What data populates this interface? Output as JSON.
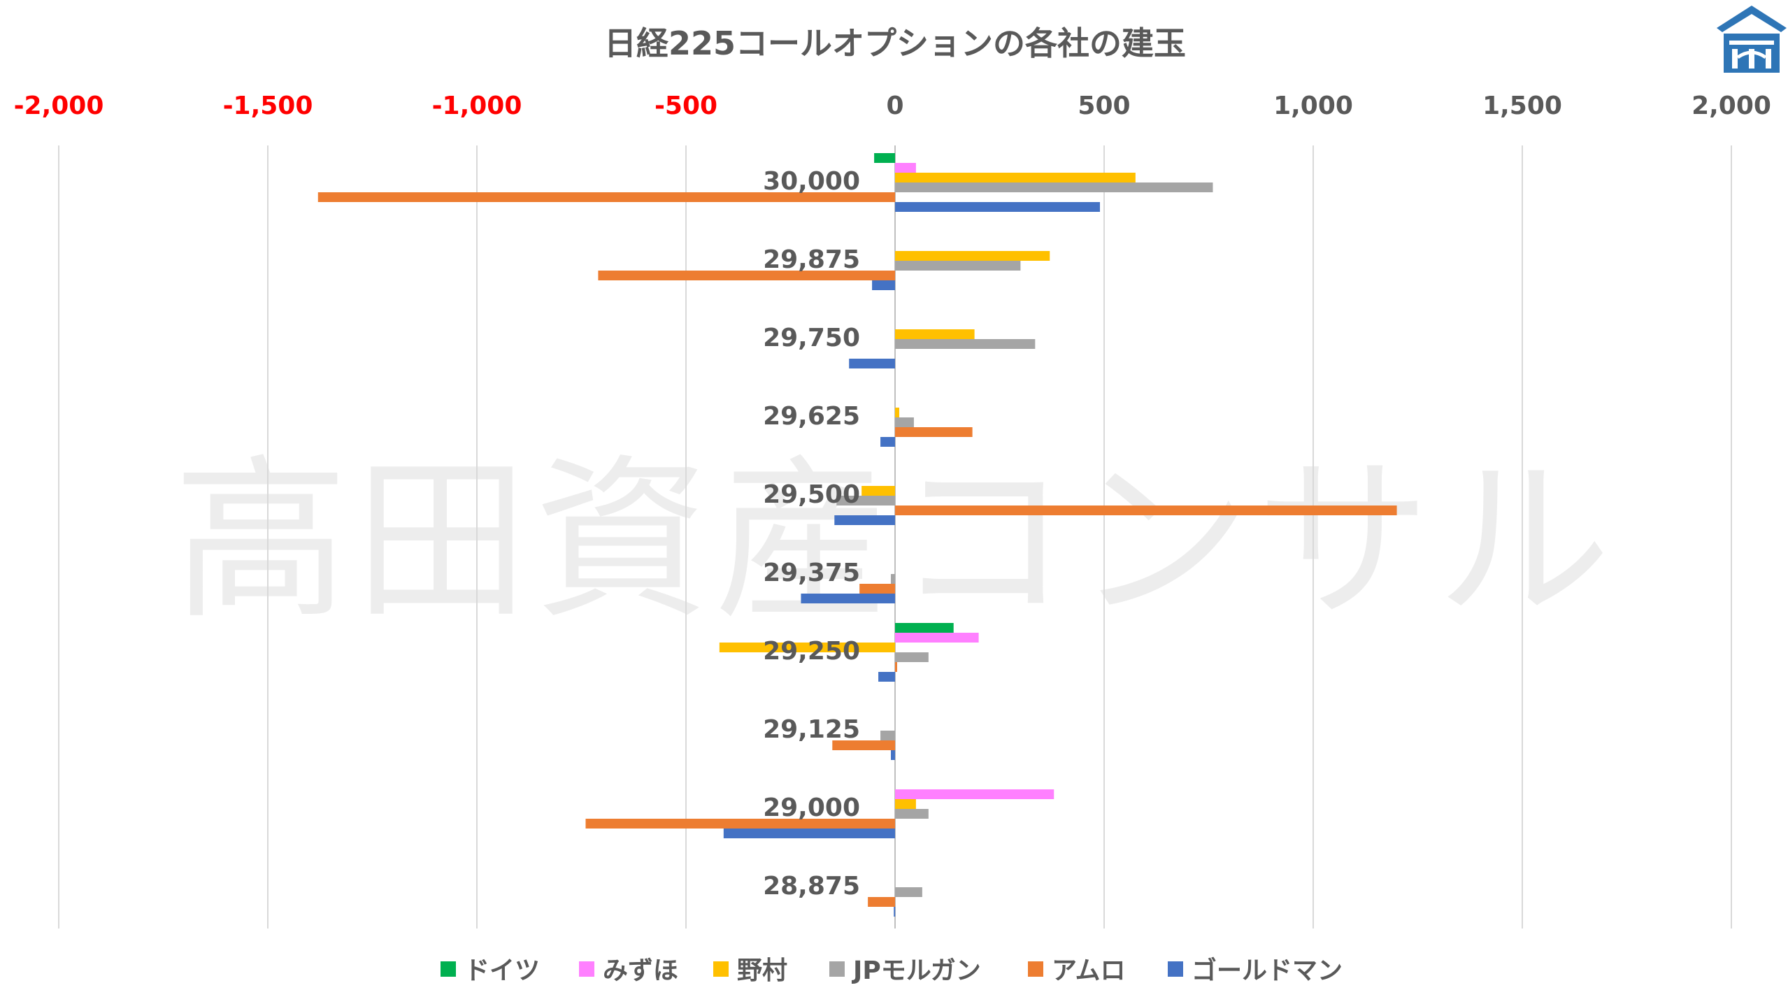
{
  "colors": {
    "negative_tick": "#ff0000",
    "positive_tick": "#595959",
    "grid": "#d9d9d9",
    "logo": "#2e75b6"
  },
  "watermark_text": "高田資産コンサル",
  "logo_icon": "house-logo-icon",
  "chart_data": {
    "type": "bar",
    "orientation": "horizontal",
    "title": "日経225コールオプションの各社の建玉",
    "xlabel": "",
    "ylabel": "",
    "xlim": [
      -2000,
      2000
    ],
    "x_ticks": [
      -2000,
      -1500,
      -1000,
      -500,
      0,
      500,
      1000,
      1500,
      2000
    ],
    "x_tick_labels": [
      "-2,000",
      "-1,500",
      "-1,000",
      "-500",
      "0",
      "500",
      "1,000",
      "1,500",
      "2,000"
    ],
    "grid": true,
    "legend_position": "bottom",
    "categories": [
      "30,000",
      "29,875",
      "29,750",
      "29,625",
      "29,500",
      "29,375",
      "29,250",
      "29,125",
      "29,000",
      "28,875"
    ],
    "series": [
      {
        "name": "ドイツ",
        "color": "#00b050",
        "values": [
          -50,
          0,
          0,
          0,
          0,
          0,
          140,
          0,
          0,
          0
        ]
      },
      {
        "name": "みずほ",
        "color": "#ff80ff",
        "values": [
          50,
          0,
          0,
          0,
          0,
          0,
          200,
          0,
          380,
          0
        ]
      },
      {
        "name": "野村",
        "color": "#ffc000",
        "values": [
          575,
          370,
          190,
          10,
          -80,
          0,
          -420,
          0,
          50,
          0
        ]
      },
      {
        "name": "JPモルガン",
        "color": "#a5a5a5",
        "values": [
          760,
          300,
          335,
          45,
          -140,
          -10,
          80,
          -35,
          80,
          65
        ]
      },
      {
        "name": "アムロ",
        "color": "#ed7d31",
        "values": [
          -1380,
          -710,
          0,
          185,
          1200,
          -85,
          5,
          -150,
          -740,
          -65
        ]
      },
      {
        "name": "ゴールドマン",
        "color": "#4472c4",
        "values": [
          490,
          -55,
          -110,
          -35,
          -145,
          -225,
          -40,
          -10,
          -410,
          -3
        ]
      }
    ]
  }
}
